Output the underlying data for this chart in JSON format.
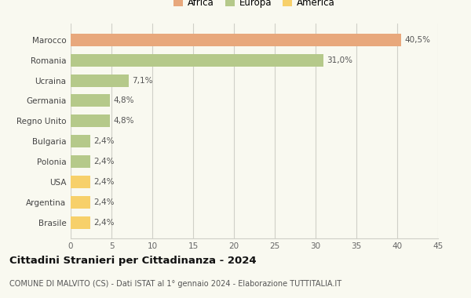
{
  "countries": [
    "Brasile",
    "Argentina",
    "USA",
    "Polonia",
    "Bulgaria",
    "Regno Unito",
    "Germania",
    "Ucraina",
    "Romania",
    "Marocco"
  ],
  "values": [
    2.4,
    2.4,
    2.4,
    2.4,
    2.4,
    4.8,
    4.8,
    7.1,
    31.0,
    40.5
  ],
  "labels": [
    "2,4%",
    "2,4%",
    "2,4%",
    "2,4%",
    "2,4%",
    "4,8%",
    "4,8%",
    "7,1%",
    "31,0%",
    "40,5%"
  ],
  "colors": [
    "#f7d06a",
    "#f7d06a",
    "#f7d06a",
    "#b5c98a",
    "#b5c98a",
    "#b5c98a",
    "#b5c98a",
    "#b5c98a",
    "#b5c98a",
    "#e8a87c"
  ],
  "continent_labels": [
    "Africa",
    "Europa",
    "America"
  ],
  "continent_colors": [
    "#e8a87c",
    "#b5c98a",
    "#f7d06a"
  ],
  "title": "Cittadini Stranieri per Cittadinanza - 2024",
  "subtitle": "COMUNE DI MALVITO (CS) - Dati ISTAT al 1° gennaio 2024 - Elaborazione TUTTITALIA.IT",
  "xlim": [
    0,
    45
  ],
  "xticks": [
    0,
    5,
    10,
    15,
    20,
    25,
    30,
    35,
    40,
    45
  ],
  "background_color": "#f9f9f0",
  "grid_color": "#d0d0c8",
  "bar_height": 0.62
}
